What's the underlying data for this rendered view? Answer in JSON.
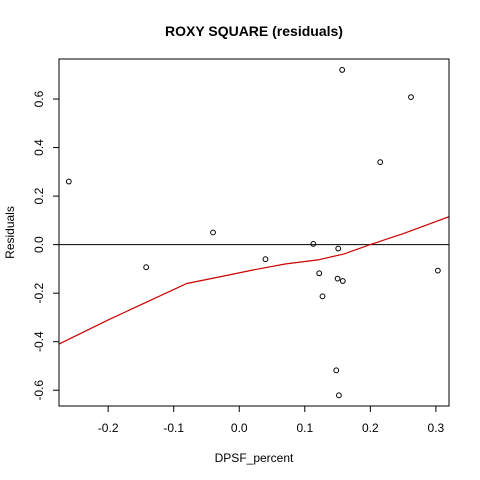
{
  "chart_data": {
    "type": "scatter",
    "title": "ROXY SQUARE (residuals)",
    "xlabel": "DPSF_percent",
    "ylabel": "Residuals",
    "xlim": [
      -0.275,
      0.32
    ],
    "ylim": [
      -0.665,
      0.765
    ],
    "x_ticks": [
      -0.2,
      -0.1,
      0.0,
      0.1,
      0.2,
      0.3
    ],
    "x_tick_labels": [
      "-0.2",
      "-0.1",
      "0.0",
      "0.1",
      "0.2",
      "0.3"
    ],
    "y_ticks": [
      -0.6,
      -0.4,
      -0.2,
      0.0,
      0.2,
      0.4,
      0.6
    ],
    "y_tick_labels": [
      "-0.6",
      "-0.4",
      "-0.2",
      "0.0",
      "0.2",
      "0.4",
      "0.6"
    ],
    "grid": false,
    "reference_line": {
      "y": 0,
      "color": "#000000"
    },
    "points": [
      {
        "x": -0.26,
        "y": 0.26
      },
      {
        "x": -0.142,
        "y": -0.093
      },
      {
        "x": -0.04,
        "y": 0.05
      },
      {
        "x": 0.04,
        "y": -0.06
      },
      {
        "x": 0.113,
        "y": 0.003
      },
      {
        "x": 0.122,
        "y": -0.118
      },
      {
        "x": 0.127,
        "y": -0.213
      },
      {
        "x": 0.148,
        "y": -0.518
      },
      {
        "x": 0.15,
        "y": -0.14
      },
      {
        "x": 0.151,
        "y": -0.016
      },
      {
        "x": 0.152,
        "y": -0.621
      },
      {
        "x": 0.157,
        "y": 0.72
      },
      {
        "x": 0.158,
        "y": -0.15
      },
      {
        "x": 0.215,
        "y": 0.34
      },
      {
        "x": 0.262,
        "y": 0.608
      },
      {
        "x": 0.303,
        "y": -0.107
      }
    ],
    "smooth_line": {
      "color": "#cc0000",
      "points": [
        {
          "x": -0.275,
          "y": -0.41
        },
        {
          "x": -0.2,
          "y": -0.31
        },
        {
          "x": -0.14,
          "y": -0.235
        },
        {
          "x": -0.08,
          "y": -0.16
        },
        {
          "x": -0.03,
          "y": -0.133
        },
        {
          "x": 0.02,
          "y": -0.105
        },
        {
          "x": 0.07,
          "y": -0.08
        },
        {
          "x": 0.12,
          "y": -0.063
        },
        {
          "x": 0.16,
          "y": -0.038
        },
        {
          "x": 0.2,
          "y": 0.0
        },
        {
          "x": 0.25,
          "y": 0.045
        },
        {
          "x": 0.32,
          "y": 0.115
        }
      ]
    }
  }
}
